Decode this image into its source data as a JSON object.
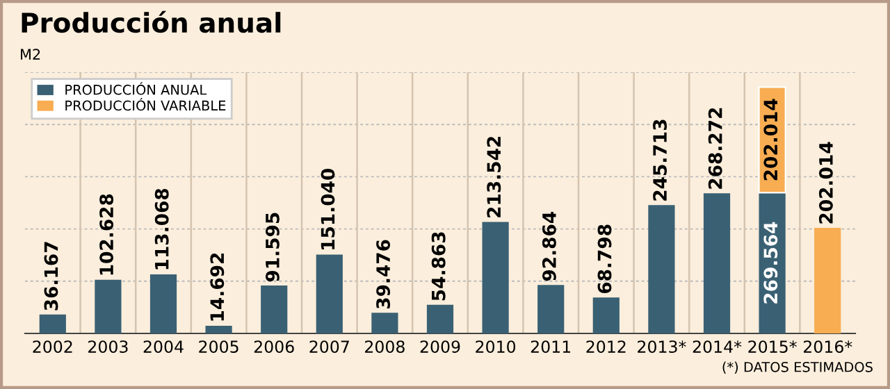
{
  "chart_data": {
    "type": "bar",
    "title": "Producción anual",
    "subtitle": "M2",
    "categories": [
      "2002",
      "2003",
      "2004",
      "2005",
      "2006",
      "2007",
      "2008",
      "2009",
      "2010",
      "2011",
      "2012",
      "2013*",
      "2014*",
      "2015*",
      "2016*"
    ],
    "stacked": true,
    "series": [
      {
        "name": "PRODUCCIÓN ANUAL",
        "color": "#3a6073",
        "values": [
          36167,
          102628,
          113068,
          14692,
          91595,
          151040,
          39476,
          54863,
          213542,
          92864,
          68798,
          245713,
          268272,
          269564,
          null
        ],
        "value_labels": [
          "36.167",
          "102.628",
          "113.068",
          "14.692",
          "91.595",
          "151.040",
          "39.476",
          "54.863",
          "213.542",
          "92.864",
          "68.798",
          "245.713",
          "268.272",
          "269.564",
          null
        ]
      },
      {
        "name": "PRODUCCIÓN VARIABLE",
        "color": "#f8ad52",
        "values": [
          null,
          null,
          null,
          null,
          null,
          null,
          null,
          null,
          null,
          null,
          null,
          null,
          null,
          202014,
          202014
        ],
        "value_labels": [
          null,
          null,
          null,
          null,
          null,
          null,
          null,
          null,
          null,
          null,
          null,
          null,
          null,
          "202.014",
          "202.014"
        ]
      }
    ],
    "ylim": [
      0,
      500000
    ],
    "yticks": [
      {
        "value": 100000,
        "label": null
      },
      {
        "value": 200000,
        "label": null
      },
      {
        "value": 300000,
        "label": null
      },
      {
        "value": 400000,
        "label": null
      },
      {
        "value": 500000,
        "label": null
      }
    ],
    "tick_labels": "x",
    "grid": true,
    "legend": "top left",
    "annotations": [
      "(*) DATOS ESTIMADOS"
    ]
  }
}
